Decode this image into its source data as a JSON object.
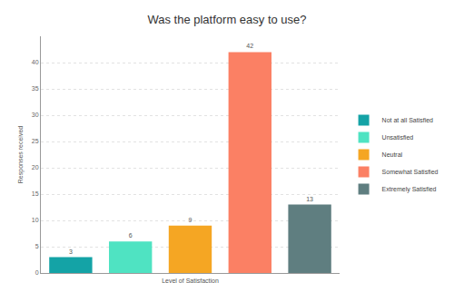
{
  "chart_data": {
    "type": "bar",
    "title": "Was the platform easy to use?",
    "x_label": "Level of Satisfaction",
    "y_label": "Responses received",
    "categories": [
      "Not at all Satisfied",
      "Unsatisfied",
      "Neutral",
      "Somewhat Satisfied",
      "Extremely Satisfied"
    ],
    "values": [
      3,
      6,
      9,
      42,
      13
    ],
    "colors": [
      "#14a3a6",
      "#4fe3c2",
      "#f5a623",
      "#fb8064",
      "#5f7e80"
    ],
    "ylim": [
      0,
      45
    ],
    "yticks": [
      0,
      5,
      10,
      15,
      20,
      25,
      30,
      35,
      40
    ],
    "grid": true,
    "data_labels": true,
    "tick_labels": "y",
    "legend": "right"
  }
}
